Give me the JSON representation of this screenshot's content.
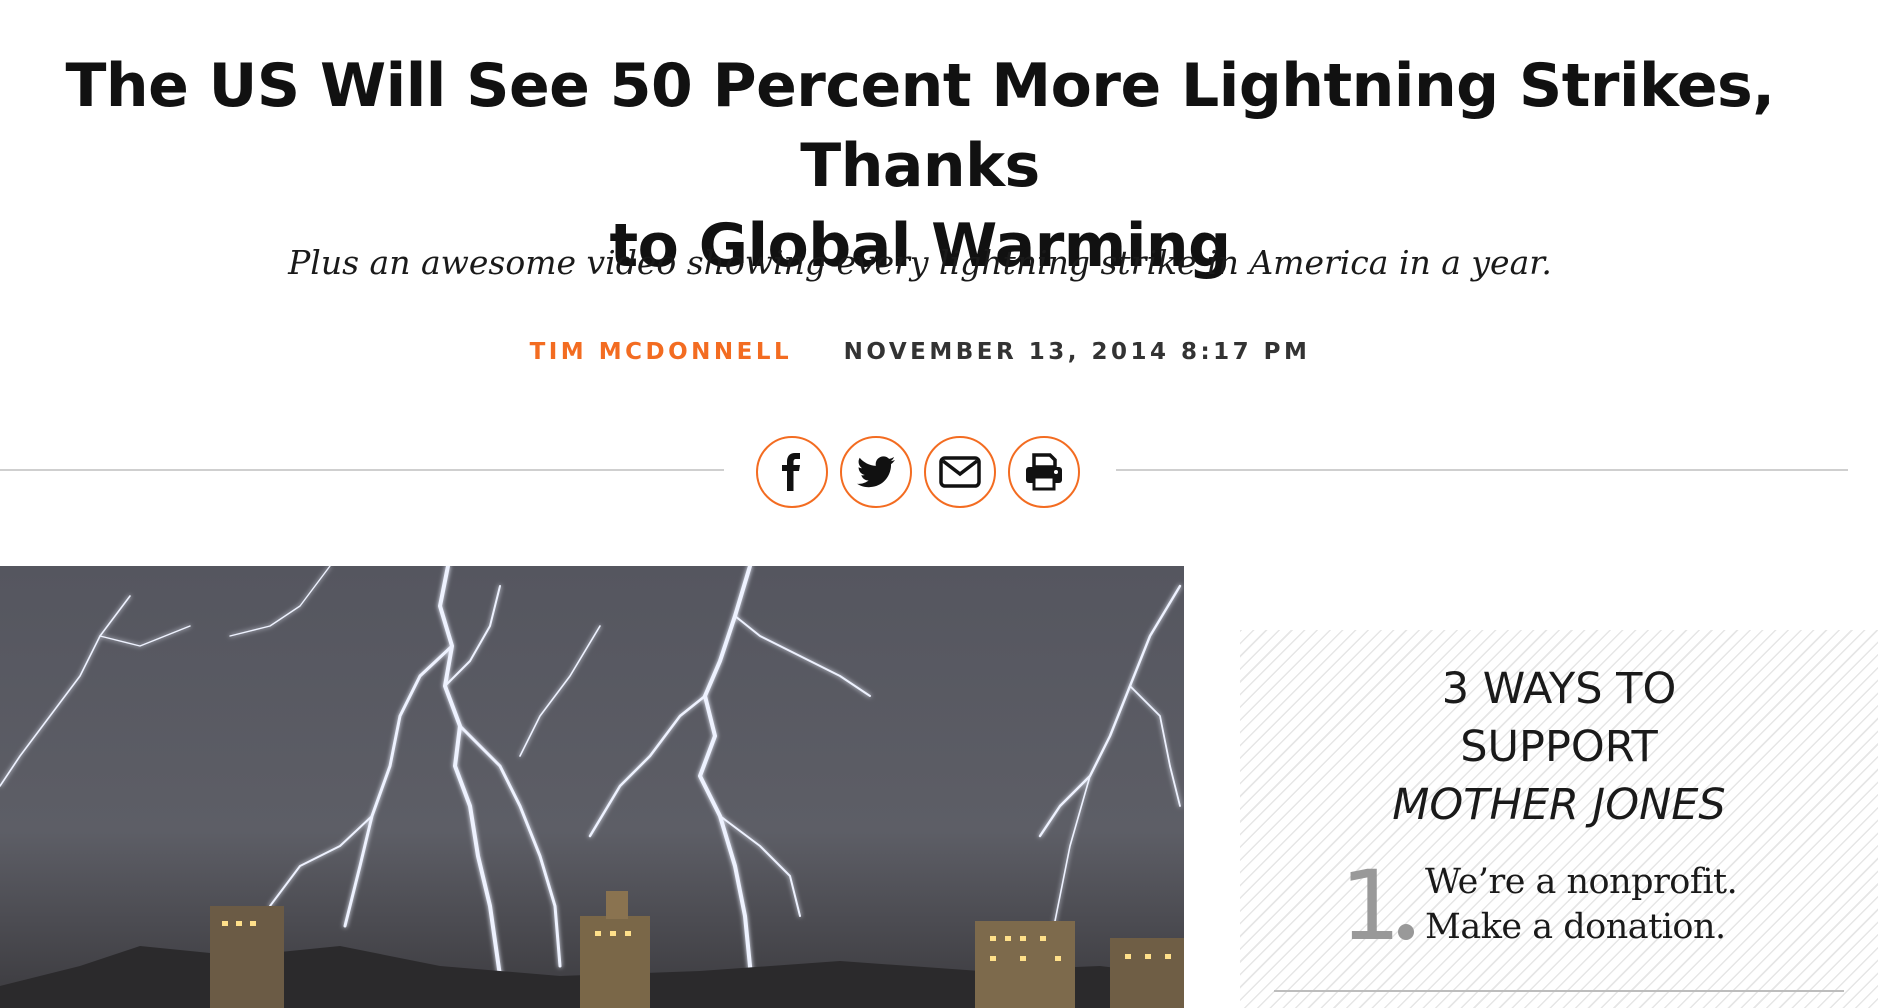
{
  "article": {
    "headline_line1": "The US Will See 50 Percent More Lightning Strikes, Thanks",
    "headline_line2": "to Global Warming",
    "dek": "Plus an awesome video showing every lightning strike in America in a year.",
    "author": "Tim McDonnell",
    "date": "November 13, 2014 8:17 PM"
  },
  "share": {
    "buttons": [
      {
        "icon": "facebook-icon"
      },
      {
        "icon": "twitter-icon"
      },
      {
        "icon": "email-icon"
      },
      {
        "icon": "print-icon"
      }
    ]
  },
  "sidebar": {
    "title_line1": "3 WAYS TO",
    "title_line2": "SUPPORT",
    "title_line3": "MOTHER JONES",
    "step1_number": "1",
    "step1_line1": "We’re a nonprofit.",
    "step1_line2": "Make a donation."
  },
  "colors": {
    "accent": "#f36c21",
    "text": "#111111",
    "rule": "#cfcfcf"
  }
}
